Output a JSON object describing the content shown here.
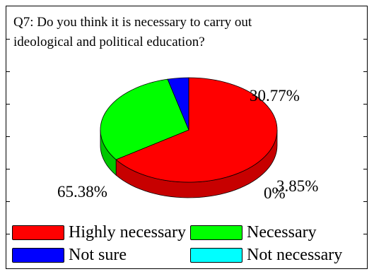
{
  "chart_data": {
    "type": "pie",
    "title_lines": [
      "Q7: Do you think it is necessary to carry out",
      "ideological and political education?"
    ],
    "categories": [
      "Highly necessary",
      "Necessary",
      "Not sure",
      "Not necessary"
    ],
    "values": [
      65.38,
      30.77,
      3.85,
      0
    ],
    "value_labels": [
      "65.38%",
      "30.77%",
      "3.85%",
      "0%"
    ],
    "colors": [
      "#ff0000",
      "#00ff00",
      "#0000ff",
      "#00ffff"
    ],
    "legend": "bottom"
  }
}
